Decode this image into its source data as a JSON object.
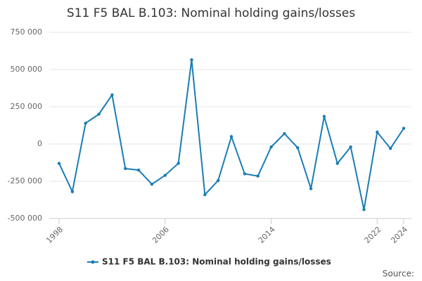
{
  "chart_data": {
    "type": "line",
    "title": "S11 F5 BAL B.103: Nominal holding gains/losses",
    "x": [
      1998,
      1999,
      2000,
      2001,
      2002,
      2003,
      2004,
      2005,
      2006,
      2007,
      2008,
      2009,
      2010,
      2011,
      2012,
      2013,
      2014,
      2015,
      2016,
      2017,
      2018,
      2019,
      2020,
      2021,
      2022,
      2023,
      2024
    ],
    "series": [
      {
        "name": "S11 F5 BAL B.103: Nominal holding gains/losses",
        "color": "#1a7db6",
        "values": [
          -130000,
          -320000,
          140000,
          200000,
          330000,
          -165000,
          -175000,
          -270000,
          -210000,
          -130000,
          565000,
          -340000,
          -245000,
          50000,
          -200000,
          -215000,
          -20000,
          70000,
          -25000,
          -300000,
          185000,
          -130000,
          -20000,
          -440000,
          80000,
          -30000,
          105000
        ]
      }
    ],
    "xlim": [
      1998,
      2024
    ],
    "xticks": [
      1998,
      2006,
      2014,
      2022,
      2024
    ],
    "ylim": [
      -500000,
      750000
    ],
    "yticks": [
      {
        "value": -500000,
        "label": "-500 000"
      },
      {
        "value": -250000,
        "label": "-250 000"
      },
      {
        "value": 0,
        "label": "0"
      },
      {
        "value": 250000,
        "label": "250 000"
      },
      {
        "value": 500000,
        "label": "500 000"
      },
      {
        "value": 750000,
        "label": "750 000"
      }
    ],
    "grid": true,
    "legend": "bottom",
    "source": "Source:"
  }
}
